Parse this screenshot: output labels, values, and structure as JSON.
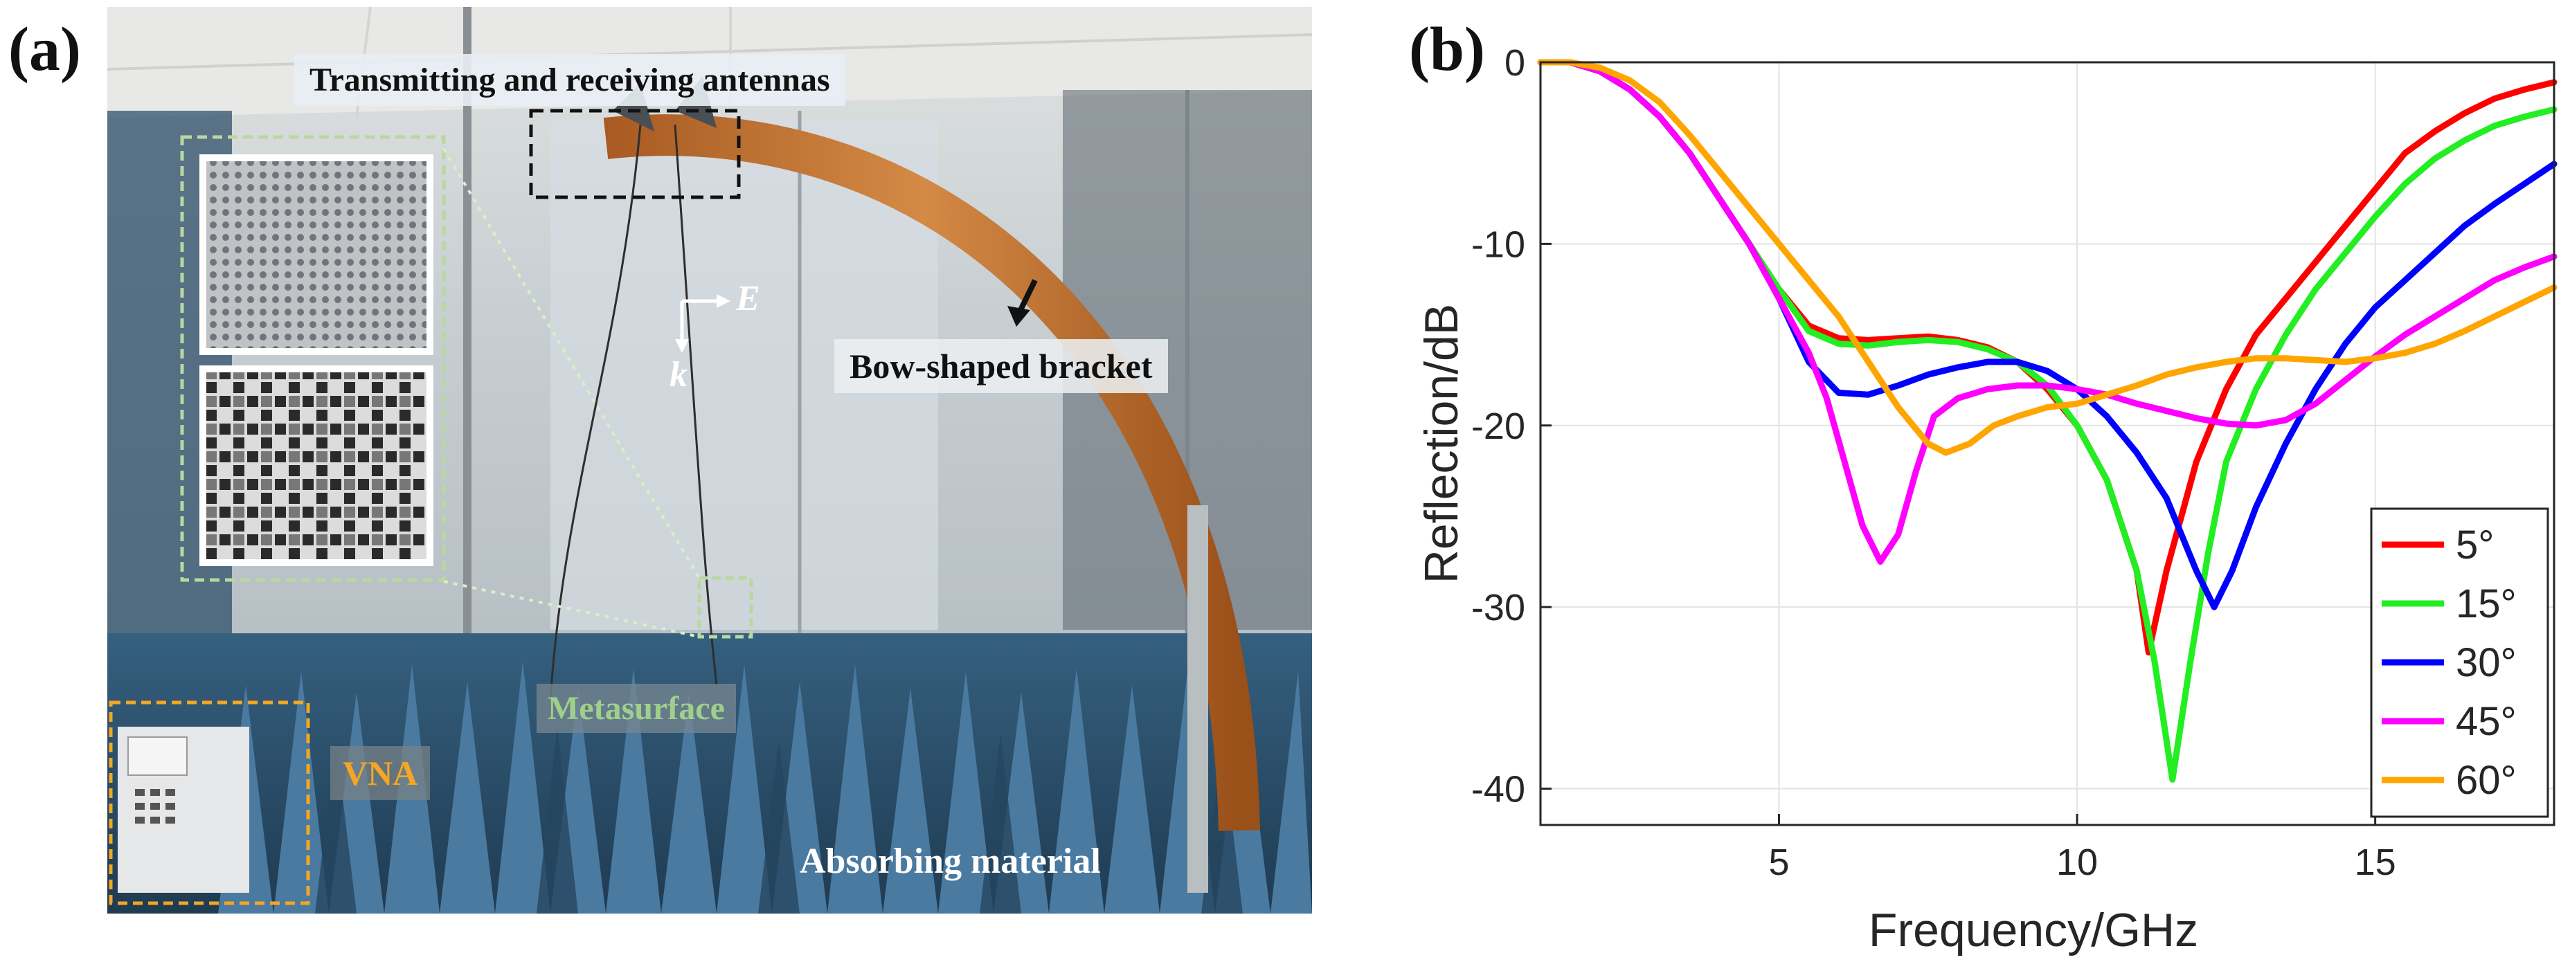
{
  "figure": {
    "panel_a_label": "(a)",
    "panel_b_label": "(b)"
  },
  "photo": {
    "callouts": {
      "antennas": "Transmitting and receiving antennas",
      "bracket": "Bow-shaped bracket",
      "metasurface": "Metasurface",
      "vna": "VNA",
      "absorbing": "Absorbing material",
      "e_field": "E",
      "k_vector": "k"
    },
    "colors": {
      "wall": "#c9d1d6",
      "ceiling": "#e4e6e4",
      "absorber": "#3d6688",
      "bracket": "#c8742e",
      "metasurface_label": "#9fd08a",
      "vna_label": "#f5a623"
    }
  },
  "chart_data": {
    "type": "line",
    "title": "",
    "xlabel": "Frequency/GHz",
    "ylabel": "Reflection/dB",
    "xlim": [
      1,
      18
    ],
    "ylim": [
      -42,
      0
    ],
    "xticks": [
      5,
      10,
      15
    ],
    "yticks": [
      0,
      -10,
      -20,
      -30,
      -40
    ],
    "grid": true,
    "legend_position": "bottom-right",
    "series": [
      {
        "name": "5°",
        "color": "#ff0000",
        "x": [
          1,
          1.5,
          2,
          2.5,
          3,
          3.5,
          4,
          4.5,
          5,
          5.5,
          6,
          6.5,
          7,
          7.5,
          8,
          8.5,
          9,
          9.5,
          10,
          10.5,
          11,
          11.2,
          11.5,
          12,
          12.5,
          13,
          13.5,
          14,
          14.5,
          15,
          15.5,
          16,
          16.5,
          17,
          17.5,
          18
        ],
        "y": [
          0,
          0,
          -0.5,
          -1.5,
          -3,
          -5,
          -7.5,
          -10,
          -12.5,
          -14.5,
          -15.2,
          -15.3,
          -15.2,
          -15.1,
          -15.3,
          -15.7,
          -16.5,
          -18,
          -20,
          -23,
          -28,
          -32.5,
          -28,
          -22,
          -18,
          -15,
          -13,
          -11,
          -9,
          -7,
          -5,
          -3.8,
          -2.8,
          -2,
          -1.5,
          -1.1
        ]
      },
      {
        "name": "15°",
        "color": "#22ee22",
        "x": [
          1,
          1.5,
          2,
          2.5,
          3,
          3.5,
          4,
          4.5,
          5,
          5.5,
          6,
          6.5,
          7,
          7.5,
          8,
          8.5,
          9,
          9.5,
          10,
          10.5,
          11,
          11.3,
          11.6,
          11.9,
          12.2,
          12.5,
          13,
          13.5,
          14,
          14.5,
          15,
          15.5,
          16,
          16.5,
          17,
          17.5,
          18
        ],
        "y": [
          0,
          0,
          -0.5,
          -1.5,
          -3,
          -5,
          -7.5,
          -10,
          -12.5,
          -14.8,
          -15.5,
          -15.6,
          -15.4,
          -15.3,
          -15.4,
          -15.8,
          -16.5,
          -17.8,
          -20,
          -23,
          -28,
          -33,
          -39.5,
          -33,
          -27,
          -22,
          -18,
          -15,
          -12.5,
          -10.5,
          -8.5,
          -6.7,
          -5.3,
          -4.3,
          -3.5,
          -3,
          -2.6
        ]
      },
      {
        "name": "30°",
        "color": "#0000ff",
        "x": [
          1,
          1.5,
          2,
          2.5,
          3,
          3.5,
          4,
          4.5,
          5,
          5.5,
          6,
          6.5,
          7,
          7.5,
          8,
          8.5,
          9,
          9.5,
          10,
          10.5,
          11,
          11.5,
          12,
          12.3,
          12.6,
          13,
          13.5,
          14,
          14.5,
          15,
          15.5,
          16,
          16.5,
          17,
          17.5,
          18
        ],
        "y": [
          0,
          0,
          -0.5,
          -1.5,
          -3,
          -5,
          -7.5,
          -10,
          -13,
          -16.5,
          -18.2,
          -18.3,
          -17.8,
          -17.2,
          -16.8,
          -16.5,
          -16.5,
          -17,
          -18,
          -19.5,
          -21.5,
          -24,
          -28,
          -30,
          -28,
          -24.5,
          -21,
          -18,
          -15.5,
          -13.5,
          -12,
          -10.5,
          -9,
          -7.8,
          -6.7,
          -5.6
        ]
      },
      {
        "name": "45°",
        "color": "#ff00ff",
        "x": [
          1,
          1.5,
          2,
          2.5,
          3,
          3.5,
          4,
          4.5,
          5,
          5.5,
          5.8,
          6.1,
          6.4,
          6.7,
          7,
          7.3,
          7.6,
          8,
          8.5,
          9,
          9.5,
          10,
          10.5,
          11,
          11.5,
          12,
          12.5,
          13,
          13.5,
          14,
          14.5,
          15,
          15.5,
          16,
          16.5,
          17,
          17.5,
          18
        ],
        "y": [
          0,
          0,
          -0.5,
          -1.5,
          -3,
          -5,
          -7.5,
          -10,
          -13,
          -16,
          -18.5,
          -22,
          -25.5,
          -27.5,
          -26,
          -22.5,
          -19.5,
          -18.5,
          -18,
          -17.8,
          -17.8,
          -18,
          -18.3,
          -18.8,
          -19.2,
          -19.6,
          -19.9,
          -20,
          -19.7,
          -18.8,
          -17.5,
          -16.2,
          -15,
          -14,
          -13,
          -12,
          -11.3,
          -10.7
        ]
      },
      {
        "name": "60°",
        "color": "#ffa500",
        "x": [
          1,
          1.5,
          2,
          2.5,
          3,
          3.5,
          4,
          4.5,
          5,
          5.5,
          6,
          6.5,
          7,
          7.5,
          7.8,
          8.2,
          8.6,
          9,
          9.5,
          10,
          10.5,
          11,
          11.5,
          12,
          12.5,
          13,
          13.5,
          14,
          14.5,
          15,
          15.5,
          16,
          16.5,
          17,
          17.5,
          18
        ],
        "y": [
          0,
          0,
          -0.3,
          -1,
          -2.2,
          -4,
          -6,
          -8,
          -10,
          -12,
          -14,
          -16.5,
          -19,
          -21,
          -21.5,
          -21,
          -20,
          -19.5,
          -19,
          -18.8,
          -18.3,
          -17.8,
          -17.2,
          -16.8,
          -16.5,
          -16.3,
          -16.3,
          -16.4,
          -16.5,
          -16.3,
          -16,
          -15.5,
          -14.8,
          -14,
          -13.2,
          -12.4
        ]
      }
    ]
  }
}
